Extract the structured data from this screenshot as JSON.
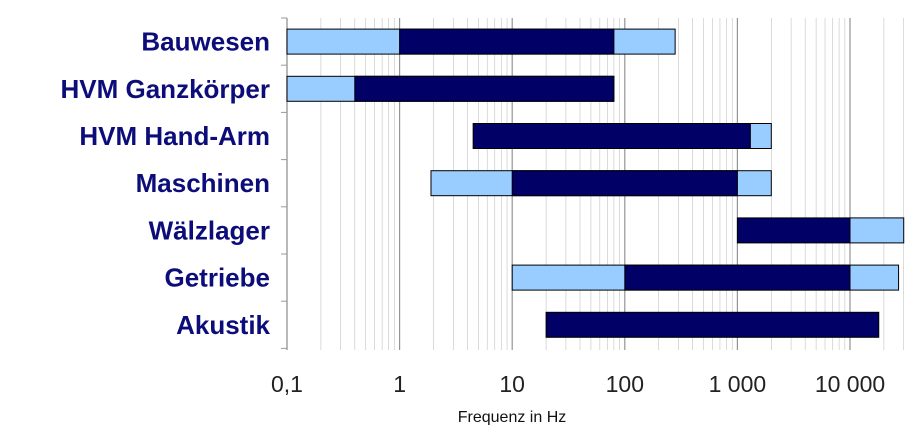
{
  "colors": {
    "core": "#000066",
    "extended": "#99ccff",
    "label": "#0d0d7a",
    "grid": "#888888",
    "axis": "#999999"
  },
  "chart_data": {
    "type": "bar",
    "orientation": "horizontal",
    "x_scale": "log",
    "xlabel": "Frequenz in Hz",
    "xlim": [
      0.1,
      30000
    ],
    "x_ticks": [
      {
        "value": 0.1,
        "label": "0,1"
      },
      {
        "value": 1,
        "label": "1"
      },
      {
        "value": 10,
        "label": "10"
      },
      {
        "value": 100,
        "label": "100"
      },
      {
        "value": 1000,
        "label": "1 000"
      },
      {
        "value": 10000,
        "label": "10 000"
      }
    ],
    "grid": true,
    "categories": [
      "Bauwesen",
      "HVM Ganzkörper",
      "HVM Hand-Arm",
      "Maschinen",
      "Wälzlager",
      "Getriebe",
      "Akustik"
    ],
    "series": [
      {
        "role": "extended",
        "ranges": [
          [
            0.1,
            280
          ],
          [
            0.1,
            80
          ],
          [
            1300,
            2000
          ],
          [
            1.9,
            2000
          ],
          [
            10000,
            30000
          ],
          [
            10,
            27000
          ],
          null
        ]
      },
      {
        "role": "core",
        "ranges": [
          [
            1,
            80
          ],
          [
            0.4,
            80
          ],
          [
            4.5,
            1300
          ],
          [
            10,
            1000
          ],
          [
            1000,
            10000
          ],
          [
            100,
            10000
          ],
          [
            20,
            18000
          ]
        ]
      }
    ]
  }
}
